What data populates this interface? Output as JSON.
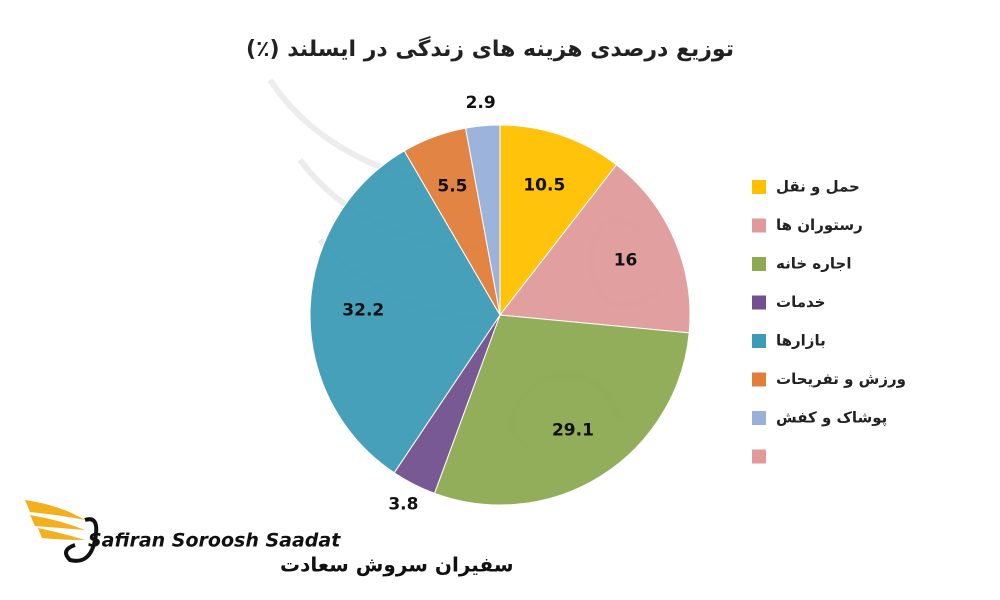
{
  "chart_data": {
    "type": "pie",
    "title": "توزیع درصدی هزینه های زندگی در ایسلند (٪)",
    "categories": [
      "حمل و نقل",
      "رستوران ها",
      "اجاره خانه",
      "خدمات",
      "بازارها",
      "ورزش و تفریحات",
      "پوشاک و کفش",
      null
    ],
    "values": [
      10.5,
      16,
      29.1,
      3.8,
      32.2,
      5.5,
      2.9,
      null
    ],
    "colors": [
      "#FFC000",
      "#E09A9A",
      "#8DAA52",
      "#71518F",
      "#3E9BB6",
      "#E07E3A",
      "#97B1DA",
      "#E09A9A"
    ],
    "legend": "right"
  },
  "branding": {
    "name": "Safiran Soroosh Saadat",
    "name_fa": "سفیران سروش سعادت"
  }
}
